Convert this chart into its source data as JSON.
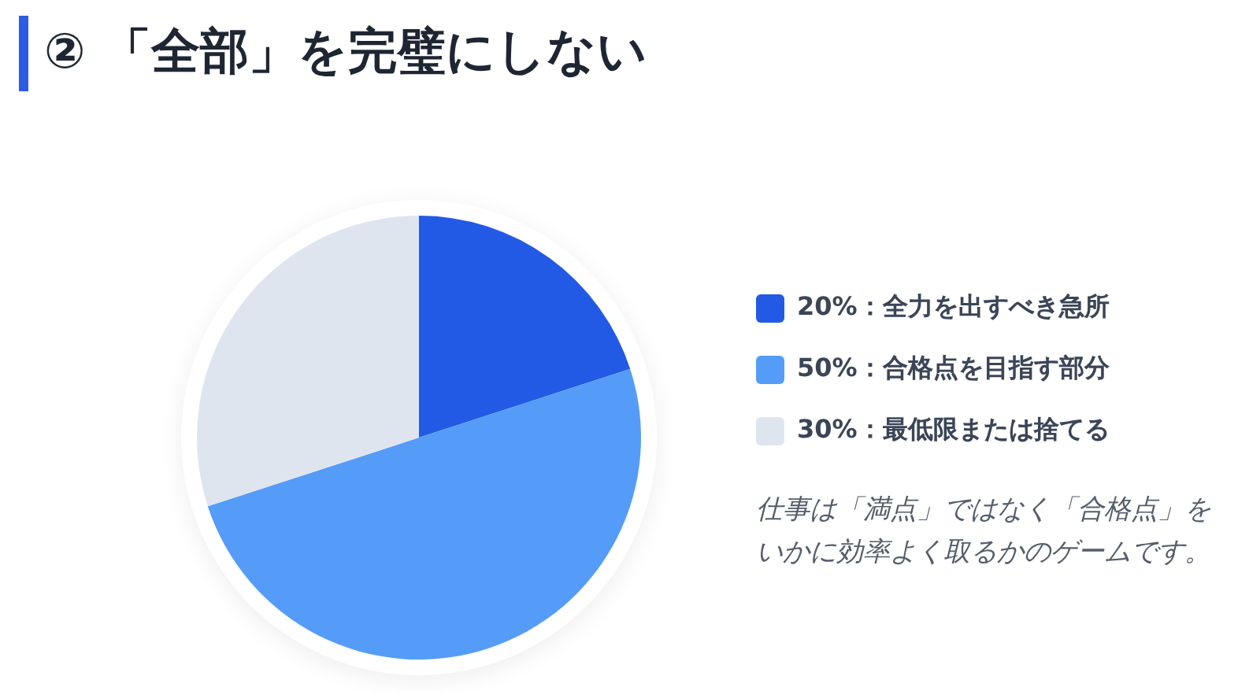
{
  "chart_data": {
    "type": "pie",
    "title": "② 「全部」を完璧にしない",
    "categories": [
      "20%：全力を出すべき急所",
      "50%：合格点を目指す部分",
      "30%：最低限または捨てる"
    ],
    "values": [
      20,
      50,
      30
    ],
    "colors": [
      "#225ae6",
      "#559cf9",
      "#dfe5ef"
    ],
    "legend": "right",
    "annotations": [
      "仕事は「満点」ではなく「合格点」をいかに効率よく取るかのゲームです。"
    ]
  }
}
